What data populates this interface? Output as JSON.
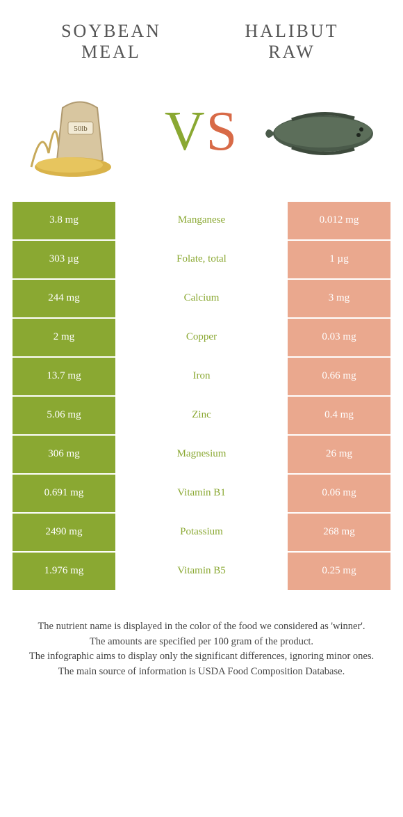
{
  "colors": {
    "left_strong": "#8aa832",
    "left_muted": "#bcd07d",
    "right_strong": "#d86a47",
    "right_muted": "#eaa88e",
    "mid_left": "#8aa832",
    "mid_right": "#d86a47",
    "heading": "#555555"
  },
  "left_label": "SOYBEAN\nMEAL",
  "right_label": "HALIBUT\nRAW",
  "vs_text": "VS",
  "rows": [
    {
      "left": "3.8 mg",
      "mid": "Manganese",
      "right": "0.012 mg",
      "winner": "left"
    },
    {
      "left": "303 µg",
      "mid": "Folate, total",
      "right": "1 µg",
      "winner": "left"
    },
    {
      "left": "244 mg",
      "mid": "Calcium",
      "right": "3 mg",
      "winner": "left"
    },
    {
      "left": "2 mg",
      "mid": "Copper",
      "right": "0.03 mg",
      "winner": "left"
    },
    {
      "left": "13.7 mg",
      "mid": "Iron",
      "right": "0.66 mg",
      "winner": "left"
    },
    {
      "left": "5.06 mg",
      "mid": "Zinc",
      "right": "0.4 mg",
      "winner": "left"
    },
    {
      "left": "306 mg",
      "mid": "Magnesium",
      "right": "26 mg",
      "winner": "left"
    },
    {
      "left": "0.691 mg",
      "mid": "Vitamin B1",
      "right": "0.06 mg",
      "winner": "left"
    },
    {
      "left": "2490 mg",
      "mid": "Potassium",
      "right": "268 mg",
      "winner": "left"
    },
    {
      "left": "1.976 mg",
      "mid": "Vitamin B5",
      "right": "0.25 mg",
      "winner": "left"
    }
  ],
  "footer": [
    "The nutrient name is displayed in the color of the food we considered as 'winner'.",
    "The amounts are specified per 100 gram of the product.",
    "The infographic aims to display only the significant differences, ignoring minor ones.",
    "The main source of information is USDA Food Composition Database."
  ]
}
